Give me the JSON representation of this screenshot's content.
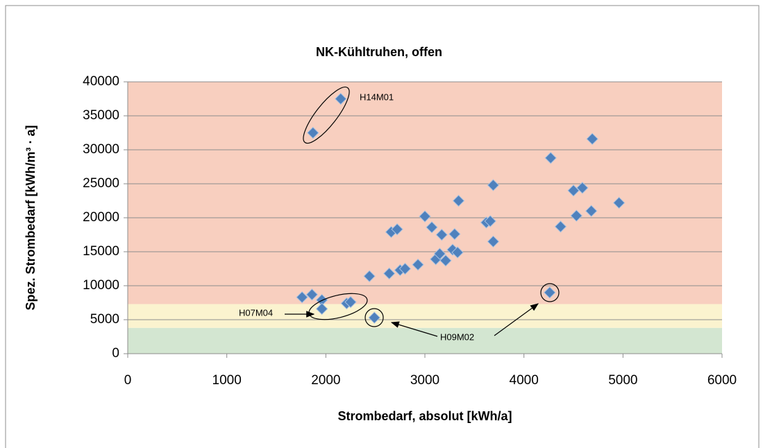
{
  "chart_data": {
    "type": "scatter",
    "title": "NK-Kühltruhen, offen",
    "xlabel": "Strombedarf, absolut [kWh/a]",
    "ylabel": "Spez. Strombedarf [kWh/m³ · a]",
    "xlim": [
      0,
      6000
    ],
    "xticks": [
      0,
      1000,
      2000,
      3000,
      4000,
      5000,
      6000
    ],
    "ylim": [
      0,
      40000
    ],
    "yticks": [
      0,
      5000,
      10000,
      15000,
      20000,
      25000,
      30000,
      35000,
      40000
    ],
    "grid": true,
    "color": "#4f81bd",
    "bands": [
      {
        "from": 0,
        "to": 3800,
        "color": "#d3e6d1"
      },
      {
        "from": 3800,
        "to": 7300,
        "color": "#fbf3cf"
      },
      {
        "from": 7300,
        "to": 40000,
        "color": "#f8cfbf"
      }
    ],
    "x": [
      2150,
      1870,
      1760,
      1860,
      1960,
      1960,
      2210,
      2250,
      2490,
      2440,
      2640,
      2660,
      2720,
      2750,
      2800,
      2930,
      3000,
      3070,
      3110,
      3150,
      3170,
      3210,
      3280,
      3300,
      3330,
      3340,
      3620,
      3660,
      3690,
      3690,
      4260,
      4270,
      4370,
      4500,
      4530,
      4590,
      4690,
      4680,
      4960
    ],
    "values": [
      37500,
      32500,
      8300,
      8700,
      7900,
      6600,
      7400,
      7600,
      5300,
      11400,
      11800,
      17900,
      18300,
      12300,
      12500,
      13100,
      20200,
      18600,
      13900,
      14700,
      17500,
      13700,
      15300,
      17600,
      14900,
      22500,
      19300,
      19500,
      24800,
      16500,
      9000,
      28800,
      18700,
      24000,
      20300,
      24400,
      31600,
      21000,
      22200
    ],
    "annotations": [
      "H14M01",
      "H07M04",
      "H09M02"
    ]
  }
}
